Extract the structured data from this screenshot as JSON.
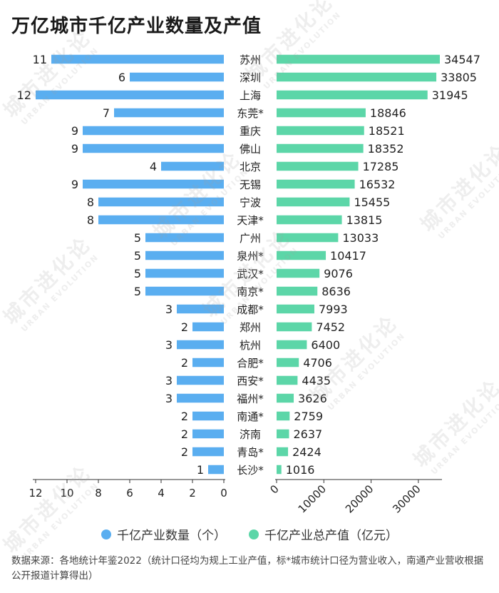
{
  "title": "万亿城市千亿产业数量及产值",
  "legend": {
    "count_label": "千亿产业数量（个）",
    "value_label": "千亿产业总产值（亿元）"
  },
  "source_note": "数据来源：各地统计年鉴2022（统计口径均为规上工业产值，标*城市统计口径为营业收入，南通产业营收根据公开报道计算得出）",
  "watermark": {
    "cn": "城市进化论",
    "en": "URBAN EVOLUTION"
  },
  "colors": {
    "count_bar": "#5aaef0",
    "value_bar": "#5cd6a8",
    "axis": "#333333",
    "text": "#222222"
  },
  "chart_data": {
    "type": "bar",
    "orientation": "horizontal-butterfly",
    "categories": [
      "苏州",
      "深圳",
      "上海",
      "东莞*",
      "重庆",
      "佛山",
      "北京",
      "无锡",
      "宁波",
      "天津*",
      "广州",
      "泉州*",
      "武汉*",
      "南京*",
      "成都*",
      "郑州",
      "杭州",
      "合肥*",
      "西安*",
      "福州*",
      "南通*",
      "济南",
      "青岛*",
      "长沙*"
    ],
    "series": [
      {
        "name": "千亿产业数量（个）",
        "values": [
          11,
          6,
          12,
          7,
          9,
          9,
          4,
          9,
          8,
          8,
          5,
          5,
          5,
          5,
          3,
          2,
          3,
          2,
          3,
          3,
          2,
          2,
          2,
          1
        ],
        "axis_ticks": [
          12,
          10,
          8,
          6,
          4,
          2,
          0
        ],
        "xlim": [
          0,
          12
        ]
      },
      {
        "name": "千亿产业总产值（亿元）",
        "values": [
          34547,
          33805,
          31945,
          18846,
          18521,
          18352,
          17285,
          16532,
          15455,
          13815,
          13033,
          10417,
          9076,
          8636,
          7993,
          7452,
          6400,
          4706,
          4435,
          3626,
          2759,
          2637,
          2424,
          1016
        ],
        "axis_ticks": [
          0,
          10000,
          20000,
          30000
        ],
        "xlim": [
          0,
          35000
        ]
      }
    ],
    "legend_position": "bottom",
    "grid": false
  }
}
